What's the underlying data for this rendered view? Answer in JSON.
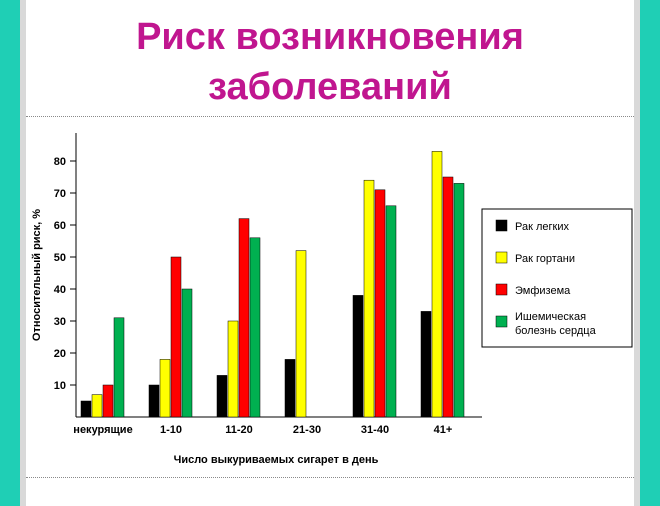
{
  "slide": {
    "title_line1": "Риск возникновения",
    "title_line2": "заболеваний"
  },
  "colors": {
    "accent": "#c0168f",
    "side_band": "#1fcfb5"
  },
  "chart_data": {
    "type": "bar",
    "categories": [
      "некурящие",
      "1-10",
      "11-20",
      "21-30",
      "31-40",
      "41+"
    ],
    "series": [
      {
        "name": "Рак легких",
        "color": "#000000",
        "values": [
          5,
          10,
          13,
          18,
          38,
          33
        ]
      },
      {
        "name": "Рак гортани",
        "color": "#ffff00",
        "values": [
          7,
          18,
          30,
          52,
          74,
          83
        ]
      },
      {
        "name": "Эмфизема",
        "color": "#ff0000",
        "values": [
          10,
          50,
          62,
          null,
          71,
          75
        ]
      },
      {
        "name": "Ишемическая болезнь сердца",
        "color": "#00b050",
        "values": [
          31,
          40,
          56,
          null,
          66,
          73
        ]
      }
    ],
    "legend_labels": [
      [
        "Рак легких"
      ],
      [
        "Рак гортани"
      ],
      [
        "Эмфизема"
      ],
      [
        "Ишемическая",
        "болезнь сердца"
      ]
    ],
    "xlabel": "Число выкуриваемых сигарет в день",
    "ylabel": "Относительный риск, %",
    "y_ticks": [
      10,
      20,
      30,
      40,
      50,
      60,
      70,
      80
    ],
    "ylim": [
      0,
      85
    ],
    "grid": false,
    "legend_position": "right"
  }
}
